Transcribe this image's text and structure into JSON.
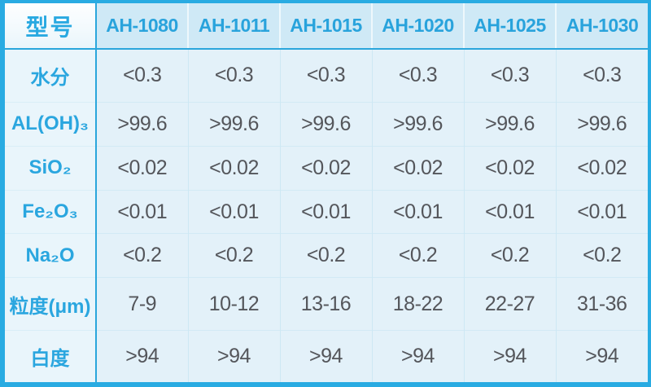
{
  "table": {
    "corner_label": "型号",
    "columns": [
      "AH-1080",
      "AH-1011",
      "AH-1015",
      "AH-1020",
      "AH-1025",
      "AH-1030"
    ],
    "rows": [
      {
        "label": "水分",
        "values": [
          "<0.3",
          "<0.3",
          "<0.3",
          "<0.3",
          "<0.3",
          "<0.3"
        ]
      },
      {
        "label": "AL(OH)₃",
        "values": [
          ">99.6",
          ">99.6",
          ">99.6",
          ">99.6",
          ">99.6",
          ">99.6"
        ]
      },
      {
        "label": "SiO₂",
        "values": [
          "<0.02",
          "<0.02",
          "<0.02",
          "<0.02",
          "<0.02",
          "<0.02"
        ]
      },
      {
        "label": "Fe₂O₃",
        "values": [
          "<0.01",
          "<0.01",
          "<0.01",
          "<0.01",
          "<0.01",
          "<0.01"
        ]
      },
      {
        "label": "Na₂O",
        "values": [
          "<0.2",
          "<0.2",
          "<0.2",
          "<0.2",
          "<0.2",
          "<0.2"
        ]
      },
      {
        "label": "粒度(μm)",
        "values": [
          "7-9",
          "10-12",
          "13-16",
          "18-22",
          "22-27",
          "31-36"
        ]
      },
      {
        "label": "白度",
        "values": [
          ">94",
          ">94",
          ">94",
          ">94",
          ">94",
          ">94"
        ]
      }
    ]
  },
  "colors": {
    "outer_border": "#29abe2",
    "strong_grid": "#2aa6dc",
    "header_bg": "#cfe9f6",
    "label_bg": "#e9f5fb",
    "cell_bg": "#e3f1f9",
    "accent_text": "#29a3dc",
    "value_text": "#54565b"
  },
  "chart_data": {
    "type": "table",
    "title": "",
    "corner_label": "型号",
    "columns": [
      "AH-1080",
      "AH-1011",
      "AH-1015",
      "AH-1020",
      "AH-1025",
      "AH-1030"
    ],
    "row_labels": [
      "水分",
      "AL(OH)₃",
      "SiO₂",
      "Fe₂O₃",
      "Na₂O",
      "粒度(μm)",
      "白度"
    ],
    "cells": [
      [
        "<0.3",
        "<0.3",
        "<0.3",
        "<0.3",
        "<0.3",
        "<0.3"
      ],
      [
        ">99.6",
        ">99.6",
        ">99.6",
        ">99.6",
        ">99.6",
        ">99.6"
      ],
      [
        "<0.02",
        "<0.02",
        "<0.02",
        "<0.02",
        "<0.02",
        "<0.02"
      ],
      [
        "<0.01",
        "<0.01",
        "<0.01",
        "<0.01",
        "<0.01",
        "<0.01"
      ],
      [
        "<0.2",
        "<0.2",
        "<0.2",
        "<0.2",
        "<0.2",
        "<0.2"
      ],
      [
        "7-9",
        "10-12",
        "13-16",
        "18-22",
        "22-27",
        "31-36"
      ],
      [
        ">94",
        ">94",
        ">94",
        ">94",
        ">94",
        ">94"
      ]
    ]
  }
}
